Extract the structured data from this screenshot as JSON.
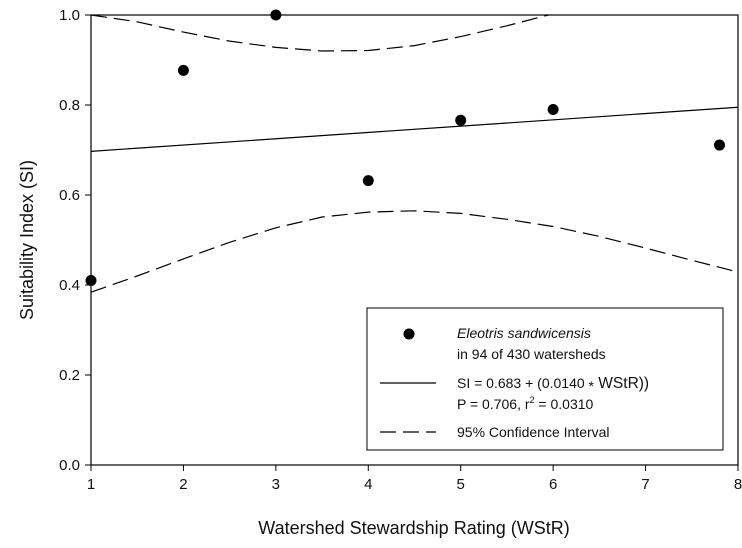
{
  "chart_data": {
    "type": "scatter",
    "xlabel": "Watershed Stewardship Rating (WStR)",
    "ylabel": "Suitability Index (SI)",
    "xlim": [
      1,
      8
    ],
    "ylim": [
      0.0,
      1.0
    ],
    "xticks": [
      "1",
      "2",
      "3",
      "4",
      "5",
      "6",
      "7",
      "8"
    ],
    "yticks": [
      "0.0",
      "0.2",
      "0.4",
      "0.6",
      "0.8",
      "1.0"
    ],
    "grid": false,
    "legend_position": "bottom-right",
    "points": [
      {
        "x": 1.0,
        "y": 0.41
      },
      {
        "x": 2.0,
        "y": 0.877
      },
      {
        "x": 3.0,
        "y": 1.0
      },
      {
        "x": 4.0,
        "y": 0.632
      },
      {
        "x": 5.0,
        "y": 0.766
      },
      {
        "x": 6.0,
        "y": 0.79
      },
      {
        "x": 7.8,
        "y": 0.711
      }
    ],
    "regression": {
      "intercept": 0.683,
      "slope": 0.014,
      "x_range": [
        1,
        8
      ]
    },
    "ci_upper": [
      {
        "x": 1.0,
        "y": 1.0
      },
      {
        "x": 1.5,
        "y": 0.985
      },
      {
        "x": 2.0,
        "y": 0.962
      },
      {
        "x": 2.5,
        "y": 0.942
      },
      {
        "x": 3.0,
        "y": 0.928
      },
      {
        "x": 3.5,
        "y": 0.92
      },
      {
        "x": 4.0,
        "y": 0.921
      },
      {
        "x": 4.5,
        "y": 0.932
      },
      {
        "x": 5.0,
        "y": 0.952
      },
      {
        "x": 5.5,
        "y": 0.976
      },
      {
        "x": 5.95,
        "y": 1.0
      }
    ],
    "ci_lower": [
      {
        "x": 1.0,
        "y": 0.384
      },
      {
        "x": 1.5,
        "y": 0.42
      },
      {
        "x": 2.0,
        "y": 0.458
      },
      {
        "x": 2.5,
        "y": 0.495
      },
      {
        "x": 3.0,
        "y": 0.527
      },
      {
        "x": 3.5,
        "y": 0.551
      },
      {
        "x": 4.0,
        "y": 0.562
      },
      {
        "x": 4.5,
        "y": 0.565
      },
      {
        "x": 5.0,
        "y": 0.559
      },
      {
        "x": 5.5,
        "y": 0.546
      },
      {
        "x": 6.0,
        "y": 0.53
      },
      {
        "x": 6.5,
        "y": 0.508
      },
      {
        "x": 7.0,
        "y": 0.482
      },
      {
        "x": 7.5,
        "y": 0.455
      },
      {
        "x": 8.0,
        "y": 0.429
      }
    ],
    "legend": {
      "species": "Eleotris sandwicensis",
      "species_note": "in 94 of 430 watersheds",
      "equation_prefix": "SI =  0.683 + (0.0140 ",
      "equation_times": "*",
      "equation_suffix": " WStR))",
      "stats_prefix": "P = 0.706, r",
      "stats_sup": "2",
      "stats_suffix": " = 0.0310",
      "ci_label": "95% Confidence Interval"
    }
  }
}
